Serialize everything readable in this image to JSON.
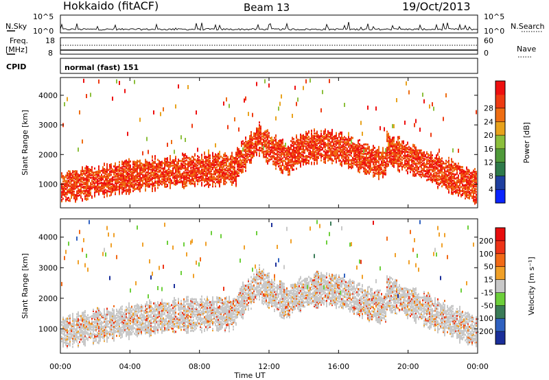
{
  "header": {
    "station": "Hokkaido (fitACF)",
    "beam": "Beam 13",
    "date": "19/Oct/2013"
  },
  "noise_panel": {
    "left_label": "N.Sky",
    "right_label": "N.Search",
    "left_ticks": [
      "10^5",
      "10^0"
    ],
    "right_ticks": [
      "10^5",
      "10^0"
    ]
  },
  "freq_panel": {
    "left_label_1": "Freq.",
    "left_label_2": "[MHz]",
    "right_label": "Nave",
    "left_ticks": [
      "18",
      "8"
    ],
    "right_ticks": [
      "60",
      "0"
    ]
  },
  "cpid_panel": {
    "label": "CPID",
    "text": "normal (fast) 151"
  },
  "chart_data": [
    {
      "type": "heatmap",
      "title": "",
      "ylabel": "Slant Range [km]",
      "xlabel": "",
      "ylim": [
        200,
        4600
      ],
      "yticks": [
        "1000",
        "2000",
        "3000",
        "4000"
      ],
      "colorbar": {
        "label": "Power [dB]",
        "ticks": [
          "4",
          "8",
          "12",
          "16",
          "20",
          "24",
          "28"
        ],
        "colors": [
          "#0a24ff",
          "#1f3fa0",
          "#2e7a4a",
          "#4f9a3a",
          "#8cbf3c",
          "#e8a21c",
          "#ee6d12",
          "#ee3b12",
          "#ee1010"
        ]
      }
    },
    {
      "type": "heatmap",
      "title": "",
      "ylabel": "Slant Range [km]",
      "xlabel": "Time UT",
      "ylim": [
        200,
        4600
      ],
      "yticks": [
        "1000",
        "2000",
        "3000",
        "4000"
      ],
      "xticks": [
        "00:00",
        "04:00",
        "08:00",
        "12:00",
        "16:00",
        "20:00",
        "00:00"
      ],
      "colorbar": {
        "label": "Velocity [m s⁻¹]",
        "ticks": [
          "200",
          "100",
          "50",
          "15",
          "-15",
          "-50",
          "-100",
          "-200"
        ],
        "colors": [
          "#1a2e9a",
          "#2f61c0",
          "#3a7b57",
          "#6ccf3a",
          "#c8c8c8",
          "#f0a028",
          "#f26a16",
          "#ee3317",
          "#e80d0d"
        ]
      }
    }
  ]
}
